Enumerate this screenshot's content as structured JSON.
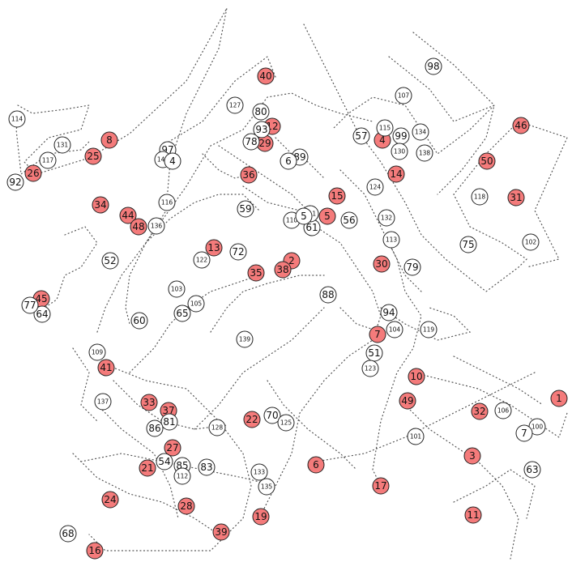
{
  "nodes": [
    {
      "id": "1",
      "red": true
    },
    {
      "id": "2",
      "red": true
    },
    {
      "id": "3",
      "red": true
    },
    {
      "id": "4",
      "red": true
    },
    {
      "id": "5",
      "red": true
    },
    {
      "id": "6",
      "red": true
    },
    {
      "id": "7",
      "red": true
    },
    {
      "id": "8",
      "red": true
    },
    {
      "id": "10",
      "red": true
    },
    {
      "id": "11",
      "red": true
    },
    {
      "id": "12",
      "red": true
    },
    {
      "id": "13",
      "red": true
    },
    {
      "id": "14",
      "red": true
    },
    {
      "id": "15",
      "red": true
    },
    {
      "id": "16",
      "red": true
    },
    {
      "id": "17",
      "red": true
    },
    {
      "id": "19",
      "red": true
    },
    {
      "id": "21",
      "red": true
    },
    {
      "id": "22",
      "red": true
    },
    {
      "id": "24",
      "red": true
    },
    {
      "id": "25",
      "red": true
    },
    {
      "id": "26",
      "red": true
    },
    {
      "id": "27",
      "red": true
    },
    {
      "id": "28",
      "red": true
    },
    {
      "id": "29",
      "red": true
    },
    {
      "id": "30",
      "red": true
    },
    {
      "id": "31",
      "red": true
    },
    {
      "id": "32",
      "red": true
    },
    {
      "id": "33",
      "red": true
    },
    {
      "id": "34",
      "red": true
    },
    {
      "id": "35",
      "red": true
    },
    {
      "id": "36",
      "red": true
    },
    {
      "id": "37",
      "red": true
    },
    {
      "id": "38",
      "red": true
    },
    {
      "id": "39",
      "red": true
    },
    {
      "id": "40",
      "red": true
    },
    {
      "id": "41",
      "red": true
    },
    {
      "id": "44",
      "red": true
    },
    {
      "id": "45",
      "red": true
    },
    {
      "id": "46",
      "red": true
    },
    {
      "id": "48",
      "red": true
    },
    {
      "id": "49",
      "red": true
    },
    {
      "id": "50",
      "red": true
    },
    {
      "id": "51"
    },
    {
      "id": "52"
    },
    {
      "id": "54"
    },
    {
      "id": "56"
    },
    {
      "id": "57"
    },
    {
      "id": "59"
    },
    {
      "id": "60"
    },
    {
      "id": "61"
    },
    {
      "id": "63"
    },
    {
      "id": "64"
    },
    {
      "id": "65"
    },
    {
      "id": "68"
    },
    {
      "id": "70"
    },
    {
      "id": "72"
    },
    {
      "id": "75"
    },
    {
      "id": "77"
    },
    {
      "id": "78"
    },
    {
      "id": "79"
    },
    {
      "id": "80"
    },
    {
      "id": "81"
    },
    {
      "id": "83"
    },
    {
      "id": "85"
    },
    {
      "id": "86"
    },
    {
      "id": "88"
    },
    {
      "id": "89"
    },
    {
      "id": "92"
    },
    {
      "id": "93"
    },
    {
      "id": "94"
    },
    {
      "id": "97"
    },
    {
      "id": "98"
    },
    {
      "id": "99"
    },
    {
      "id": "100"
    },
    {
      "id": "101"
    },
    {
      "id": "102"
    },
    {
      "id": "103"
    },
    {
      "id": "104"
    },
    {
      "id": "105"
    },
    {
      "id": "106"
    },
    {
      "id": "107"
    },
    {
      "id": "109"
    },
    {
      "id": "110"
    },
    {
      "id": "111"
    },
    {
      "id": "112"
    },
    {
      "id": "113"
    },
    {
      "id": "114"
    },
    {
      "id": "115"
    },
    {
      "id": "116"
    },
    {
      "id": "117"
    },
    {
      "id": "118"
    },
    {
      "id": "119"
    },
    {
      "id": "122"
    },
    {
      "id": "123"
    },
    {
      "id": "124"
    },
    {
      "id": "125"
    },
    {
      "id": "127"
    },
    {
      "id": "128"
    },
    {
      "id": "130"
    },
    {
      "id": "131"
    },
    {
      "id": "132"
    },
    {
      "id": "133"
    },
    {
      "id": "134"
    },
    {
      "id": "135"
    },
    {
      "id": "136"
    },
    {
      "id": "137"
    },
    {
      "id": "138"
    },
    {
      "id": "139"
    },
    {
      "id": "140"
    },
    {
      "id": "7"
    },
    {
      "id": "6"
    },
    {
      "id": "4"
    },
    {
      "id": "5"
    }
  ],
  "colors": {
    "red_fill": "#f47b7b",
    "white_fill": "#ffffff",
    "stroke": "#222222",
    "path": "#555555"
  }
}
